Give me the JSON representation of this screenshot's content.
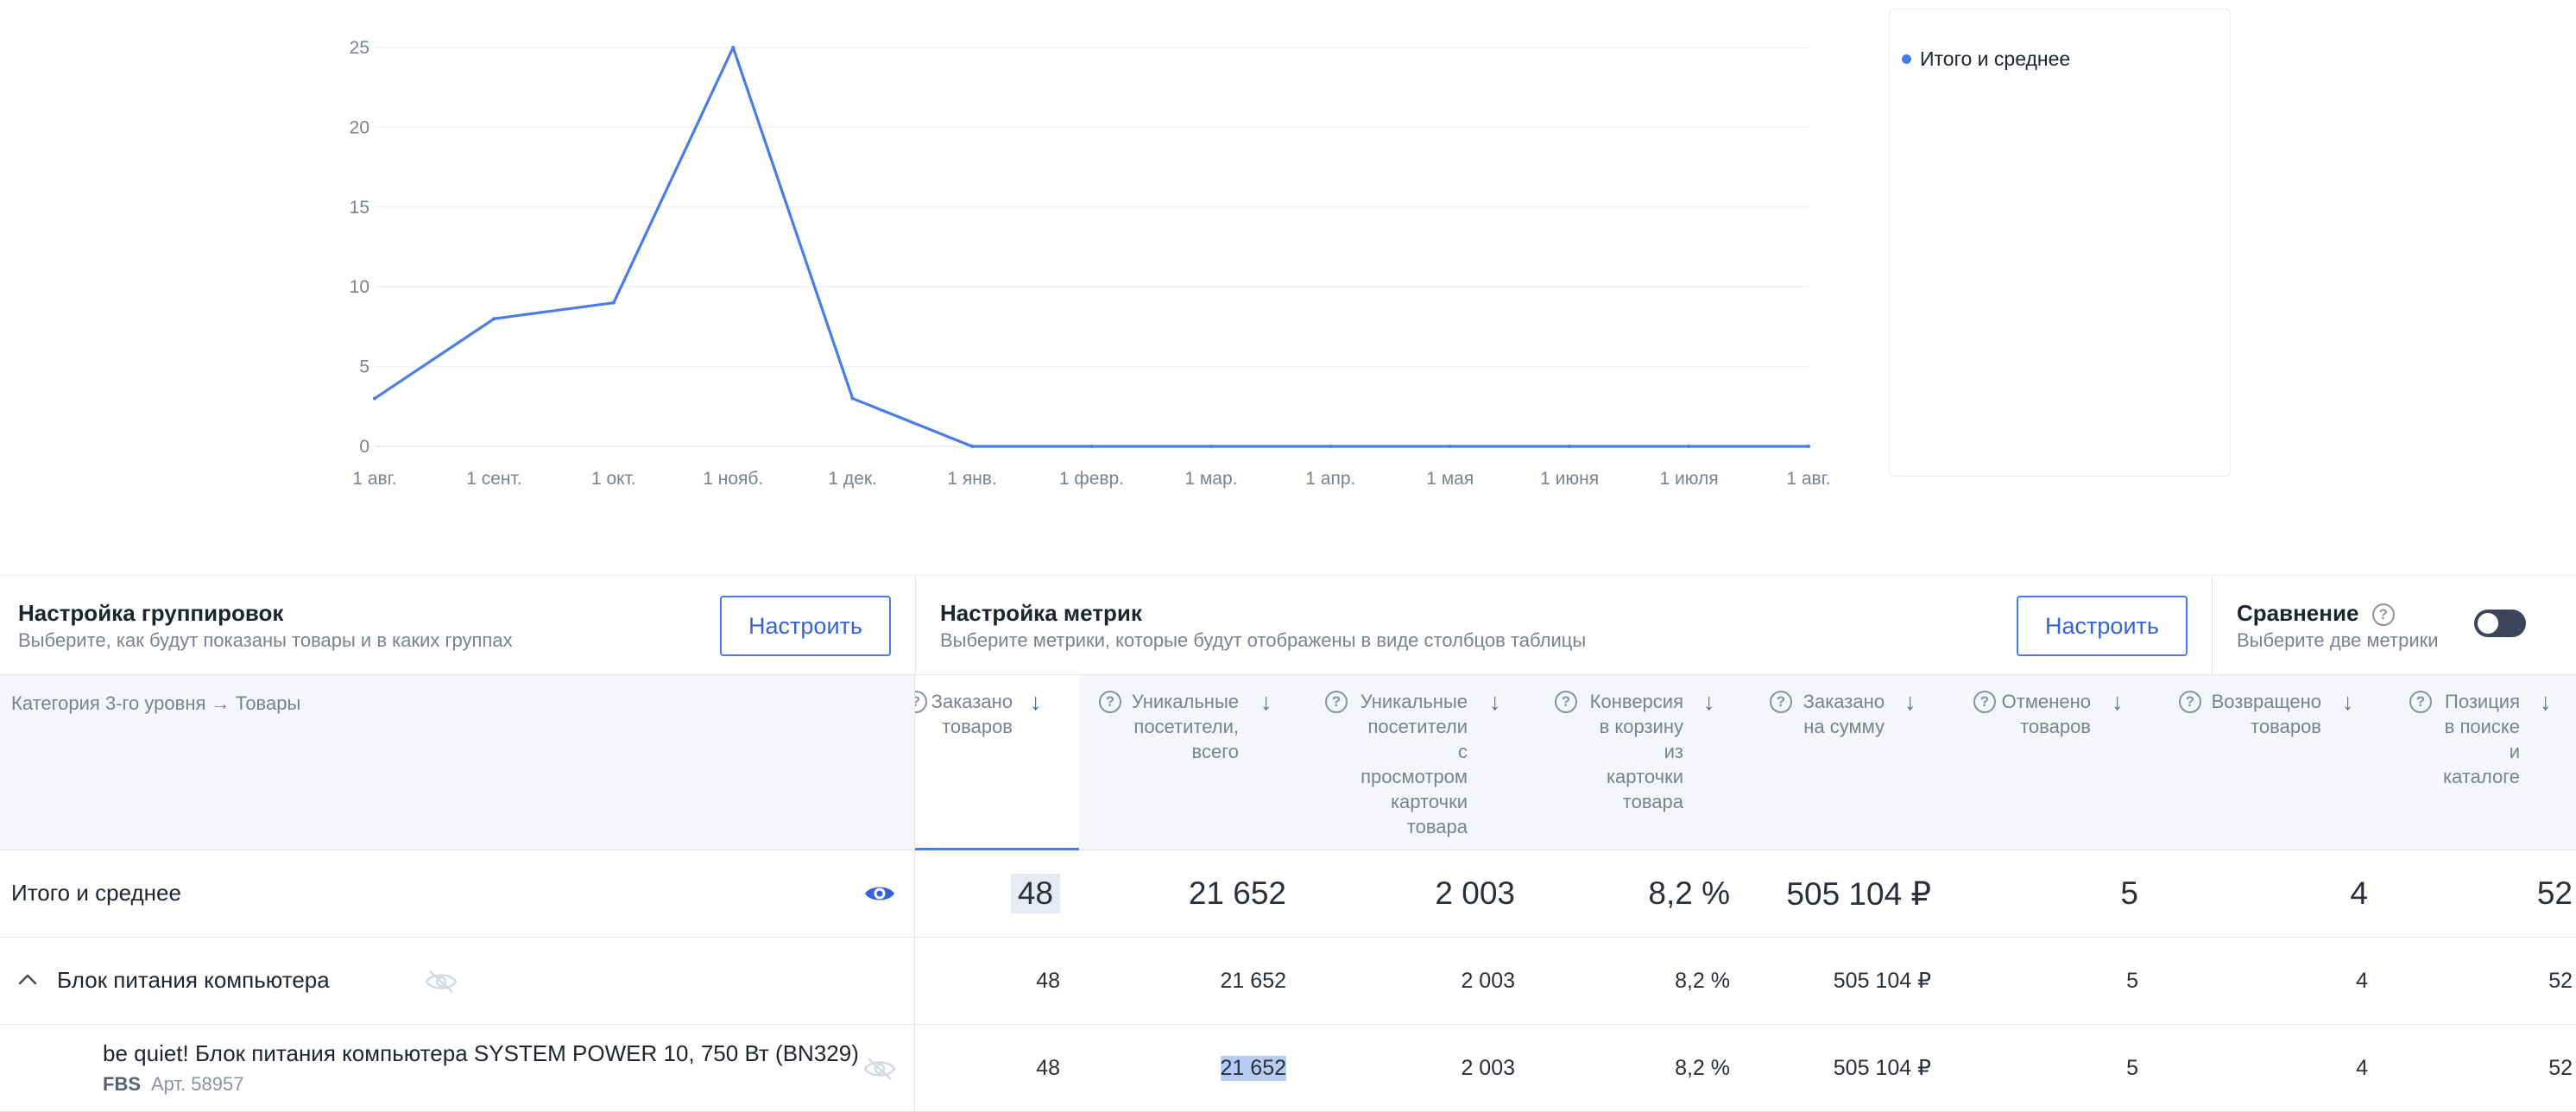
{
  "chart_data": {
    "type": "line",
    "x": [
      "1 авг.",
      "1 сент.",
      "1 окт.",
      "1 нояб.",
      "1 дек.",
      "1 янв.",
      "1 февр.",
      "1 мар.",
      "1 апр.",
      "1 мая",
      "1 июня",
      "1 июля",
      "1 авг."
    ],
    "y_ticks": [
      "0",
      "5",
      "10",
      "15",
      "20",
      "25"
    ],
    "ylim": [
      0,
      25
    ],
    "series": [
      {
        "name": "Итого и среднее",
        "values": [
          3,
          8,
          9,
          25,
          3,
          0,
          0,
          0,
          0,
          0,
          0,
          0,
          0
        ]
      }
    ],
    "grid": true,
    "legend_position": "right",
    "line_color": "#4b7be5"
  },
  "legend": {
    "label": "Итого и среднее"
  },
  "settings": {
    "grouping": {
      "title": "Настройка группировок",
      "subtitle": "Выберите, как будут показаны товары и в каких группах",
      "button": "Настроить"
    },
    "metrics": {
      "title": "Настройка метрик",
      "subtitle": "Выберите метрики, которые будут отображены в виде столбцов таблицы",
      "button": "Настроить"
    },
    "compare": {
      "title": "Сравнение",
      "subtitle": "Выберите две метрики",
      "enabled": false
    }
  },
  "table": {
    "group_header": "Категория 3-го уровня → Товары",
    "columns": [
      {
        "lines": [
          "Заказано",
          "товаров"
        ]
      },
      {
        "lines": [
          "Уникальные",
          "посетители,",
          "всего"
        ]
      },
      {
        "lines": [
          "Уникальные",
          "посетители",
          "с",
          "просмотром",
          "карточки",
          "товара"
        ]
      },
      {
        "lines": [
          "Конверсия",
          "в корзину",
          "из",
          "карточки",
          "товара"
        ]
      },
      {
        "lines": [
          "Заказано",
          "на сумму"
        ]
      },
      {
        "lines": [
          "Отменено",
          "товаров"
        ]
      },
      {
        "lines": [
          "Возвращено",
          "товаров"
        ]
      },
      {
        "lines": [
          "Позиция",
          "в поиске",
          "и",
          "каталоге"
        ]
      }
    ],
    "help_glyph": "?",
    "sort_glyph": "↓",
    "rows": {
      "total": {
        "label": "Итого и среднее",
        "values": [
          "48",
          "21 652",
          "2 003",
          "8,2 %",
          "505 104 ₽",
          "5",
          "4",
          "52"
        ]
      },
      "group": {
        "label": "Блок питания компьютера",
        "chevron": "⌃",
        "values": [
          "48",
          "21 652",
          "2 003",
          "8,2 %",
          "505 104 ₽",
          "5",
          "4",
          "52"
        ]
      },
      "item": {
        "label": "be quiet! Блок питания компьютера SYSTEM POWER 10, 750 Вт (BN329)",
        "badge": "FBS",
        "article": "Арт. 58957",
        "values": [
          "48",
          "21 652",
          "2 003",
          "8,2 %",
          "505 104 ₽",
          "5",
          "4",
          "52"
        ]
      }
    }
  }
}
